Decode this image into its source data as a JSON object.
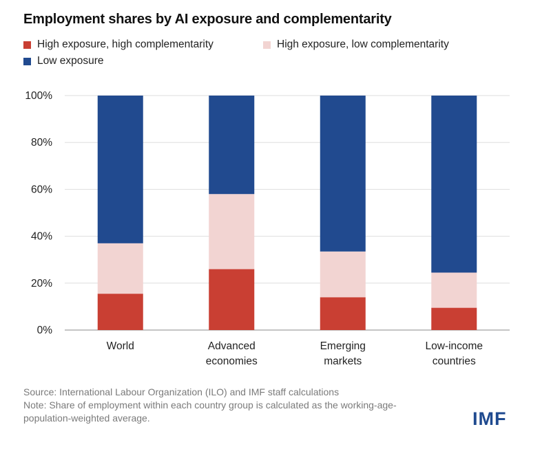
{
  "header": {
    "title": "Employment shares by AI exposure and complementarity"
  },
  "chart_data": {
    "type": "bar",
    "stacked": true,
    "categories": [
      "World",
      "Advanced economies",
      "Emerging markets",
      "Low-income countries"
    ],
    "category_lines": [
      [
        "World"
      ],
      [
        "Advanced",
        "economies"
      ],
      [
        "Emerging",
        "markets"
      ],
      [
        "Low-income",
        "countries"
      ]
    ],
    "series": [
      {
        "name": "High exposure, high complementarity",
        "color": "#c93f33",
        "values": [
          15.5,
          26,
          14,
          9.5
        ]
      },
      {
        "name": "High exposure, low complementarity",
        "color": "#f2d4d2",
        "values": [
          21.5,
          32,
          19.5,
          15
        ]
      },
      {
        "name": "Low exposure",
        "color": "#214a8f",
        "values": [
          63,
          42,
          66.5,
          75.5
        ]
      }
    ],
    "yticks": [
      "0%",
      "20%",
      "40%",
      "60%",
      "80%",
      "100%"
    ],
    "ylim": [
      0,
      100
    ],
    "grid": true,
    "legend_position": "top-left"
  },
  "footer": {
    "source": "Source: International Labour Organization (ILO) and IMF staff calculations",
    "note_line1": "Note: Share of employment within each country group is calculated as the working-age-",
    "note_line2": "population-weighted average.",
    "logo": "IMF"
  }
}
